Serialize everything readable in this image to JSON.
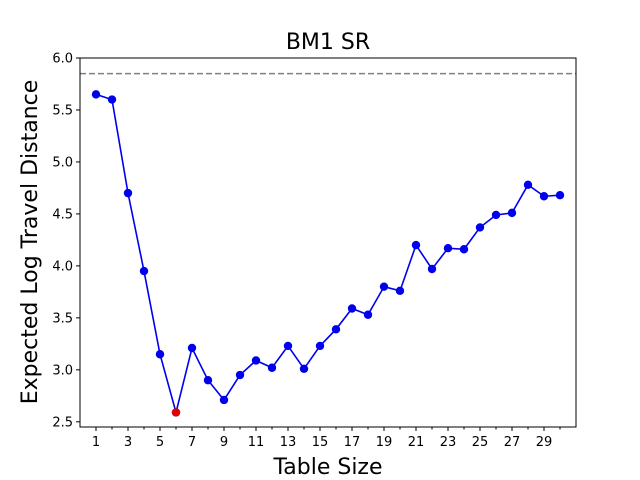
{
  "chart_data": {
    "type": "line",
    "title": "BM1 SR",
    "xlabel": "Table Size",
    "ylabel": "Expected Log Travel Distance",
    "xlim": [
      0,
      31
    ],
    "ylim": [
      2.45,
      6.0
    ],
    "xticks_labeled": [
      1,
      3,
      5,
      7,
      9,
      11,
      13,
      15,
      17,
      19,
      21,
      23,
      25,
      27,
      29
    ],
    "xticks_minor": [
      2,
      4,
      6,
      8,
      10,
      12,
      14,
      16,
      18,
      20,
      22,
      24,
      26,
      28,
      30
    ],
    "yticks": [
      2.5,
      3.0,
      3.5,
      4.0,
      4.5,
      5.0,
      5.5,
      6.0
    ],
    "ytick_labels": [
      "2.5",
      "3.0",
      "3.5",
      "4.0",
      "4.5",
      "5.0",
      "5.5",
      "6.0"
    ],
    "grid": false,
    "reference_line": {
      "y": 5.85,
      "style": "dashed",
      "color": "#808080"
    },
    "series": [
      {
        "color": "#0000ee",
        "x": [
          1,
          2,
          3,
          4,
          5,
          6,
          7,
          8,
          9,
          10,
          11,
          12,
          13,
          14,
          15,
          16,
          17,
          18,
          19,
          20,
          21,
          22,
          23,
          24,
          25,
          26,
          27,
          28,
          29,
          30
        ],
        "y": [
          5.65,
          5.6,
          4.7,
          3.95,
          3.15,
          2.59,
          3.21,
          2.9,
          2.71,
          2.95,
          3.09,
          3.02,
          3.23,
          3.01,
          3.23,
          3.39,
          3.59,
          3.53,
          3.8,
          3.76,
          4.2,
          3.97,
          4.17,
          4.16,
          4.37,
          4.49,
          4.51,
          4.78,
          4.67,
          4.68
        ]
      }
    ],
    "highlight": {
      "x": 6,
      "y": 2.59,
      "color": "#e00000"
    }
  }
}
